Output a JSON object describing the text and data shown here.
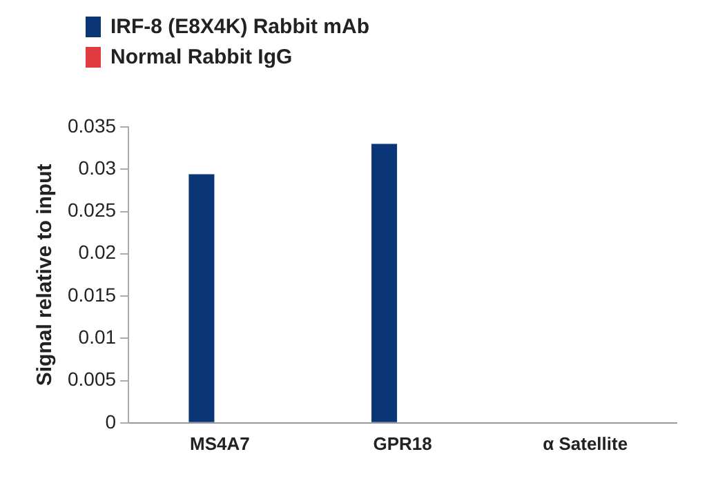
{
  "chart_data": {
    "type": "bar",
    "ylabel": "Signal relative to input",
    "categories": [
      "MS4A7",
      "GPR18",
      "α Satellite"
    ],
    "series": [
      {
        "name": "IRF-8 (E8X4K) Rabbit mAb",
        "color": "#0a3678",
        "values": [
          0.0294,
          0.033,
          0
        ]
      },
      {
        "name": "Normal Rabbit IgG",
        "color": "#e03a3e",
        "values": [
          0,
          0,
          0
        ]
      }
    ],
    "ylim": [
      0,
      0.035
    ],
    "yticks": [
      0,
      0.005,
      0.01,
      0.015,
      0.02,
      0.025,
      0.03,
      0.035
    ],
    "grid": false,
    "legend": "top left"
  }
}
